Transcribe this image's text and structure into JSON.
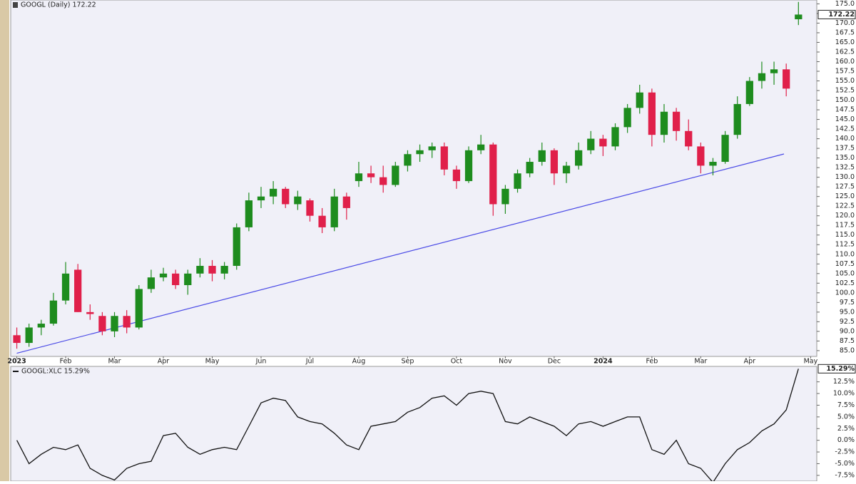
{
  "chart_data": [
    {
      "type": "candlestick",
      "title": "GOOGL (Daily) 172.22",
      "categories": [
        "2023",
        null,
        null,
        null,
        "Feb",
        null,
        null,
        null,
        "Mar",
        null,
        null,
        null,
        "Apr",
        null,
        null,
        null,
        "May",
        null,
        null,
        null,
        "Jun",
        null,
        null,
        null,
        "Jul",
        null,
        null,
        null,
        "Aug",
        null,
        null,
        null,
        "Sep",
        null,
        null,
        null,
        "Oct",
        null,
        null,
        null,
        "Nov",
        null,
        null,
        null,
        "Dec",
        null,
        null,
        null,
        "2024",
        null,
        null,
        null,
        "Feb",
        null,
        null,
        null,
        "Mar",
        null,
        null,
        null,
        "Apr",
        null,
        null,
        null,
        null,
        "May"
      ],
      "open": [
        89,
        87,
        91,
        92,
        98,
        106,
        95,
        94,
        90,
        94,
        91,
        101,
        104,
        105,
        102,
        105,
        107,
        105,
        107,
        117,
        124,
        125,
        127,
        123,
        124,
        120,
        117,
        125,
        129,
        131,
        130,
        128,
        133,
        136,
        137,
        138,
        132,
        129,
        137,
        138.5,
        123,
        127,
        131,
        134,
        137,
        131,
        133,
        137,
        140,
        138,
        143,
        148,
        152,
        141,
        147,
        142,
        138,
        133,
        134,
        141,
        149,
        155,
        157,
        158,
        171,
        null
      ],
      "high": [
        91,
        92,
        93,
        100,
        108,
        107.5,
        97,
        95,
        95,
        95.5,
        102,
        106,
        106.5,
        106,
        106,
        109,
        108.5,
        108,
        118,
        126,
        127.5,
        129,
        127.5,
        126.5,
        124.5,
        122,
        127,
        126,
        134,
        133,
        133,
        134,
        137,
        138.5,
        139,
        139,
        133,
        138,
        141,
        139,
        128,
        132,
        135,
        139,
        137.5,
        134,
        139,
        142,
        141,
        144,
        149,
        154,
        153,
        149,
        148,
        145,
        139,
        135,
        142,
        151,
        156,
        160,
        160,
        159.5,
        175.5,
        null
      ],
      "low": [
        85.5,
        86,
        89,
        91.5,
        97,
        95,
        93,
        89,
        88.5,
        89.5,
        90.5,
        100,
        103,
        101,
        99.5,
        104,
        103,
        103.5,
        106,
        116,
        122,
        123,
        122,
        121.5,
        118.5,
        115.5,
        116,
        119,
        127.5,
        128.5,
        126,
        127.5,
        131.5,
        134,
        135,
        130.5,
        127,
        128.5,
        136,
        120,
        120.5,
        126,
        130,
        133,
        128,
        128.5,
        132,
        136,
        135.5,
        137,
        141.5,
        146.5,
        138,
        139,
        139.5,
        137,
        131,
        130.5,
        133.5,
        140,
        148.5,
        153,
        154,
        151,
        169.5,
        null
      ],
      "close": [
        87,
        91,
        92,
        98,
        105,
        95,
        94.5,
        90,
        94,
        91,
        101,
        104,
        105,
        102,
        105,
        107,
        105,
        107,
        117,
        124,
        125,
        127,
        123,
        125,
        120,
        117,
        125,
        122,
        131,
        130,
        128,
        133,
        136,
        137,
        138,
        132,
        129,
        137,
        138.5,
        123,
        127,
        131,
        134,
        137,
        131,
        133,
        137,
        140,
        138,
        143,
        148,
        152,
        141,
        147,
        142,
        138,
        133,
        134,
        141,
        149,
        155,
        157,
        158,
        153,
        172.22,
        null
      ],
      "up_color": "#1e8c1e",
      "down_color": "#e0204a",
      "last_price": 172.22,
      "ylim": [
        83.5,
        176
      ],
      "yticks": [
        {
          "value": 85,
          "label": "85.0"
        },
        {
          "value": 87.5,
          "label": "87.5"
        },
        {
          "value": 90,
          "label": "90.0"
        },
        {
          "value": 92.5,
          "label": "92.5"
        },
        {
          "value": 95,
          "label": "95.0"
        },
        {
          "value": 97.5,
          "label": "97.5"
        },
        {
          "value": 100,
          "label": "100.0"
        },
        {
          "value": 102.5,
          "label": "102.5"
        },
        {
          "value": 105,
          "label": "105.0"
        },
        {
          "value": 107.5,
          "label": "107.5"
        },
        {
          "value": 110,
          "label": "110.0"
        },
        {
          "value": 112.5,
          "label": "112.5"
        },
        {
          "value": 115,
          "label": "115.0"
        },
        {
          "value": 117.5,
          "label": "117.5"
        },
        {
          "value": 120,
          "label": "120.0"
        },
        {
          "value": 122.5,
          "label": "122.5"
        },
        {
          "value": 125,
          "label": "125.0"
        },
        {
          "value": 127.5,
          "label": "127.5"
        },
        {
          "value": 130,
          "label": "130.0"
        },
        {
          "value": 132.5,
          "label": "132.5"
        },
        {
          "value": 135,
          "label": "135.0"
        },
        {
          "value": 137.5,
          "label": "137.5"
        },
        {
          "value": 140,
          "label": "140.0"
        },
        {
          "value": 142.5,
          "label": "142.5"
        },
        {
          "value": 145,
          "label": "145.0"
        },
        {
          "value": 147.5,
          "label": "147.5"
        },
        {
          "value": 150,
          "label": "150.0"
        },
        {
          "value": 152.5,
          "label": "152.5"
        },
        {
          "value": 155,
          "label": "155.0"
        },
        {
          "value": 157.5,
          "label": "157.5"
        },
        {
          "value": 160,
          "label": "160.0"
        },
        {
          "value": 162.5,
          "label": "162.5"
        },
        {
          "value": 165,
          "label": "165.0"
        },
        {
          "value": 167.5,
          "label": "167.5"
        },
        {
          "value": 170,
          "label": "170.0"
        },
        {
          "value": 172.5,
          "label": "172.5"
        },
        {
          "value": 175,
          "label": "175.0"
        }
      ]
    },
    {
      "type": "line",
      "title": "GOOGL:XLC 15.29%",
      "color": "#111111",
      "values": [
        0,
        -5,
        -3,
        -1.5,
        -2,
        -1,
        -6,
        -7.5,
        -8.5,
        -6,
        -5,
        -4.5,
        1,
        1.5,
        -1.5,
        -3,
        -2,
        -1.5,
        -2,
        3,
        8,
        9,
        8.5,
        5,
        4,
        3.5,
        1.5,
        -1,
        -2,
        3,
        3.5,
        4,
        6,
        7,
        9,
        9.5,
        7.5,
        10,
        10.5,
        10,
        4,
        3.5,
        5,
        4,
        3,
        1,
        3.5,
        4,
        3,
        4,
        5,
        5,
        -2,
        -3,
        0,
        -5,
        -6,
        -9,
        -5,
        -2,
        -0.5,
        2,
        3.5,
        6.5,
        15.29,
        null
      ],
      "last_value": {
        "value": 15.29,
        "label": "15.29%"
      },
      "ylim": [
        -8.74,
        15.8
      ],
      "yticks": [
        {
          "value": 12.5,
          "label": "12.5%"
        },
        {
          "value": 10,
          "label": "10.0%"
        },
        {
          "value": 7.5,
          "label": "7.5%"
        },
        {
          "value": 5,
          "label": "5.0%"
        },
        {
          "value": 2.5,
          "label": "2.5%"
        },
        {
          "value": 0,
          "label": "0.0%"
        },
        {
          "value": -2.5,
          "label": "-2.5%"
        },
        {
          "value": -5,
          "label": "-5.0%"
        },
        {
          "value": -7.5,
          "label": "-7.5%"
        }
      ]
    }
  ]
}
